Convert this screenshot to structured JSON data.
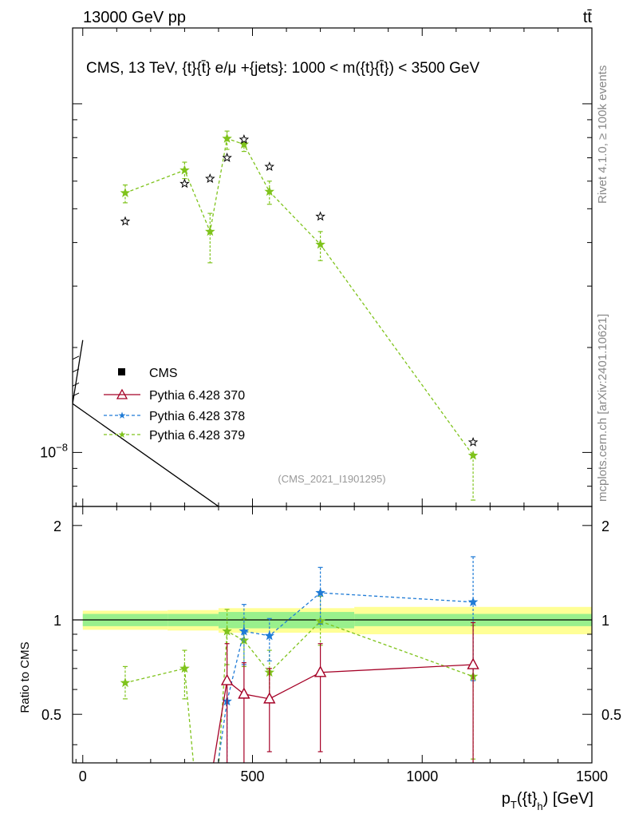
{
  "header": {
    "energy_label": "13000 GeV pp",
    "process_label": "tt̄",
    "main_title": "CMS, 13 TeV, {t}{t̄} e/μ +{jets}: 1000 < m({t}{t̄}) < 3500 GeV",
    "analysis_ref": "(CMS_2021_I1901295)",
    "side_rivet": "Rivet 4.1.0, ≥ 100k events",
    "side_mcplots": "mcplots.cern.ch [arXiv:2401.10621]"
  },
  "legend": {
    "entries": [
      {
        "label": "CMS",
        "color": "#000000",
        "marker": "square"
      },
      {
        "label": "Pythia 6.428 370",
        "color": "#a50026",
        "marker": "triangle"
      },
      {
        "label": "Pythia 6.428 378",
        "color": "#1f7bd6",
        "marker": "star"
      },
      {
        "label": "Pythia 6.428 379",
        "color": "#7fc31c",
        "marker": "star"
      }
    ]
  },
  "chart_data": [
    {
      "type": "scatter",
      "panel": "main",
      "yscale": "log",
      "ylabel": "",
      "ytick_labels": [
        "10^-8"
      ],
      "xlim": [
        -30,
        1500
      ],
      "ylim": [
        7e-09,
        1.65e-07
      ],
      "series": [
        {
          "name": "CMS",
          "color": "#000000",
          "style": "open-star",
          "x": [
            125,
            300,
            375,
            425,
            475,
            550,
            700,
            1150
          ],
          "y": [
            4.6e-08,
            5.9e-08,
            6.1e-08,
            7e-08,
            7.9e-08,
            6.6e-08,
            4.75e-08,
            1.07e-08
          ]
        },
        {
          "name": "Pythia 6.428 370",
          "color": "#a50026",
          "style": "triangle-solid",
          "x": [],
          "y": []
        },
        {
          "name": "Pythia 6.428 378",
          "color": "#1f7bd6",
          "style": "star-dashed",
          "x": [],
          "y": []
        },
        {
          "name": "Pythia 6.428 379",
          "color": "#7fc31c",
          "style": "star-dashed",
          "x": [
            125,
            300,
            375,
            425,
            475,
            550,
            700,
            1150
          ],
          "y": [
            5.55e-08,
            6.45e-08,
            4.3e-08,
            7.95e-08,
            7.65e-08,
            5.6e-08,
            3.95e-08,
            9.8e-09
          ],
          "yerr_low": [
            3.5e-09,
            3.5e-09,
            8e-09,
            5.5e-09,
            3.5e-09,
            4.5e-09,
            4e-09,
            2.5e-09
          ],
          "yerr_high": [
            3e-09,
            3.5e-09,
            5.5e-09,
            4e-09,
            3e-09,
            4e-09,
            3.5e-09,
            0.0
          ]
        }
      ]
    },
    {
      "type": "line",
      "panel": "ratio",
      "ylabel": "Ratio to CMS",
      "xlabel": "p_T({t}_h) [GeV]",
      "xlim": [
        -30,
        1500
      ],
      "ylim": [
        0.35,
        2.3
      ],
      "x_ticks": [
        0,
        500,
        1000,
        1500
      ],
      "y_ticks": [
        0.5,
        1,
        2
      ],
      "reference_line": 1.0,
      "bands": {
        "bin_edges": [
          0,
          250,
          400,
          800,
          1500
        ],
        "inner_half_width": [
          0.045,
          0.045,
          0.06,
          0.045
        ],
        "outer_half_width": [
          0.07,
          0.075,
          0.09,
          0.1
        ],
        "inner_color": "#99f08c",
        "outer_color": "#ffff96"
      },
      "series": [
        {
          "name": "Pythia 6.428 370",
          "color": "#a50026",
          "style": "triangle-solid",
          "x": [
            425,
            475,
            550,
            700,
            1150
          ],
          "y": [
            0.64,
            0.58,
            0.56,
            0.68,
            0.72
          ],
          "yerr_low": [
            0.3,
            0.3,
            0.18,
            0.3,
            0.5
          ],
          "yerr_high": [
            0.2,
            0.15,
            0.14,
            0.16,
            0.26
          ],
          "offscale_entry_x": 370
        },
        {
          "name": "Pythia 6.428 378",
          "color": "#1f7bd6",
          "style": "star-dashed",
          "x": [
            425,
            475,
            550,
            700,
            1150
          ],
          "y": [
            0.55,
            0.92,
            0.89,
            1.22,
            1.14
          ],
          "yerr_low": [
            0.2,
            0.2,
            0.15,
            0.25,
            0.5
          ],
          "yerr_high": [
            0.1,
            0.2,
            0.12,
            0.25,
            0.45
          ],
          "offscale_entry_x": 385
        },
        {
          "name": "Pythia 6.428 379",
          "color": "#7fc31c",
          "style": "star-dashed",
          "x": [
            125,
            300,
            425,
            475,
            550,
            700,
            1150
          ],
          "y": [
            0.63,
            0.7,
            0.92,
            0.86,
            0.68,
            0.99,
            0.66
          ],
          "yerr_low": [
            0.07,
            0.14,
            0.2,
            0.15,
            0.12,
            0.16,
            0.3
          ],
          "yerr_high": [
            0.08,
            0.1,
            0.16,
            0.15,
            0.12,
            0.2,
            0.3
          ],
          "offscale_gap_between": [
            300,
            425
          ],
          "offscale_dip_x": [
            335,
            395
          ]
        }
      ]
    }
  ]
}
